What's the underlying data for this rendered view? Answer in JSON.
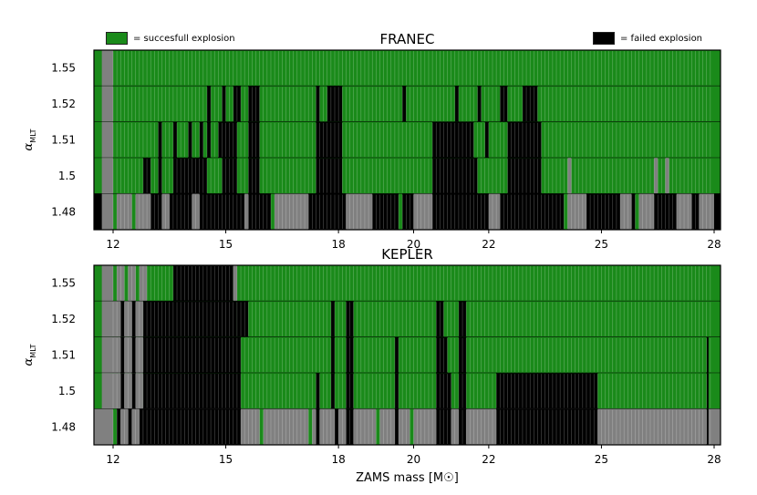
{
  "colors": {
    "success": "#1a8a1a",
    "failed": "#000000",
    "unexplored": "#808080",
    "gap": "#ffffff"
  },
  "legend": {
    "success_label": "= succesfull explosion",
    "failed_label": "= failed explosion"
  },
  "chart_data": [
    {
      "type": "heatmap",
      "title": "FRANEC",
      "xlabel": "",
      "ylabel": "α_MLT",
      "xlim": [
        11.7,
        28
      ],
      "x_ticks": [
        12,
        15,
        18,
        20,
        22,
        25,
        28
      ],
      "y_categories": [
        "1.55",
        "1.52",
        "1.51",
        "1.5",
        "1.48"
      ],
      "rows": [
        {
          "alpha": "1.55",
          "default": "S",
          "runs": [
            [
              11.7,
              12.0,
              "G"
            ]
          ]
        },
        {
          "alpha": "1.52",
          "default": "S",
          "runs": [
            [
              11.7,
              12.0,
              "G"
            ],
            [
              14.5,
              14.6,
              "F"
            ],
            [
              14.9,
              15.0,
              "F"
            ],
            [
              15.2,
              15.4,
              "F"
            ],
            [
              15.6,
              15.9,
              "F"
            ],
            [
              17.4,
              17.5,
              "F"
            ],
            [
              17.7,
              18.1,
              "F"
            ],
            [
              19.7,
              19.8,
              "F"
            ],
            [
              21.1,
              21.2,
              "F"
            ],
            [
              21.7,
              21.8,
              "F"
            ],
            [
              22.3,
              22.5,
              "F"
            ],
            [
              22.9,
              23.3,
              "F"
            ]
          ]
        },
        {
          "alpha": "1.51",
          "default": "S",
          "runs": [
            [
              11.7,
              12.0,
              "G"
            ],
            [
              13.2,
              13.3,
              "F"
            ],
            [
              13.6,
              13.7,
              "F"
            ],
            [
              14.0,
              14.1,
              "F"
            ],
            [
              14.3,
              14.4,
              "F"
            ],
            [
              14.5,
              14.6,
              "F"
            ],
            [
              14.8,
              15.3,
              "F"
            ],
            [
              15.6,
              15.9,
              "F"
            ],
            [
              17.4,
              18.1,
              "F"
            ],
            [
              20.5,
              21.6,
              "F"
            ],
            [
              21.9,
              22.0,
              "F"
            ],
            [
              22.5,
              23.4,
              "F"
            ]
          ]
        },
        {
          "alpha": "1.5",
          "default": "S",
          "runs": [
            [
              11.7,
              12.0,
              "G"
            ],
            [
              12.8,
              13.0,
              "F"
            ],
            [
              13.2,
              13.3,
              "F"
            ],
            [
              13.6,
              14.5,
              "F"
            ],
            [
              14.3,
              14.5,
              "F"
            ],
            [
              14.9,
              15.3,
              "F"
            ],
            [
              15.6,
              15.9,
              "F"
            ],
            [
              17.4,
              18.1,
              "F"
            ],
            [
              20.5,
              21.7,
              "F"
            ],
            [
              22.5,
              23.4,
              "F"
            ],
            [
              24.1,
              24.2,
              "G"
            ],
            [
              26.4,
              26.5,
              "G"
            ],
            [
              26.7,
              26.8,
              "G"
            ]
          ]
        },
        {
          "alpha": "1.48",
          "default": "F",
          "runs": [
            [
              11.7,
              12.0,
              "G"
            ],
            [
              12.0,
              12.1,
              "S"
            ],
            [
              12.1,
              12.5,
              "G"
            ],
            [
              12.5,
              12.6,
              "S"
            ],
            [
              12.6,
              13.0,
              "G"
            ],
            [
              13.3,
              13.5,
              "G"
            ],
            [
              14.1,
              14.3,
              "G"
            ],
            [
              15.5,
              15.6,
              "G"
            ],
            [
              16.2,
              16.3,
              "S"
            ],
            [
              16.3,
              17.2,
              "G"
            ],
            [
              18.2,
              18.9,
              "G"
            ],
            [
              19.6,
              19.7,
              "S"
            ],
            [
              20.0,
              20.5,
              "G"
            ],
            [
              22.0,
              22.3,
              "G"
            ],
            [
              24.0,
              24.1,
              "S"
            ],
            [
              24.1,
              24.6,
              "G"
            ],
            [
              25.5,
              25.8,
              "G"
            ],
            [
              25.9,
              26.0,
              "S"
            ],
            [
              26.0,
              26.4,
              "G"
            ],
            [
              27.0,
              27.4,
              "G"
            ],
            [
              27.6,
              28.0,
              "G"
            ]
          ]
        }
      ]
    },
    {
      "type": "heatmap",
      "title": "KEPLER",
      "xlabel": "ZAMS mass [M☉]",
      "ylabel": "α_MLT",
      "xlim": [
        11.7,
        28
      ],
      "x_ticks": [
        12,
        15,
        18,
        20,
        22,
        25,
        28
      ],
      "y_categories": [
        "1.55",
        "1.52",
        "1.51",
        "1.5",
        "1.48"
      ],
      "rows": [
        {
          "alpha": "1.55",
          "default": "S",
          "runs": [
            [
              11.7,
              12.0,
              "G"
            ],
            [
              12.1,
              12.3,
              "G"
            ],
            [
              12.4,
              12.6,
              "G"
            ],
            [
              12.7,
              12.9,
              "G"
            ],
            [
              13.6,
              15.2,
              "F"
            ],
            [
              15.2,
              15.3,
              "G"
            ]
          ]
        },
        {
          "alpha": "1.52",
          "default": "S",
          "runs": [
            [
              11.7,
              12.8,
              "G"
            ],
            [
              12.2,
              12.3,
              "F"
            ],
            [
              12.5,
              12.6,
              "F"
            ],
            [
              12.8,
              15.3,
              "F"
            ],
            [
              15.3,
              15.6,
              "F"
            ],
            [
              17.8,
              17.9,
              "F"
            ],
            [
              18.2,
              18.4,
              "F"
            ],
            [
              20.6,
              20.8,
              "F"
            ],
            [
              21.2,
              21.4,
              "F"
            ]
          ]
        },
        {
          "alpha": "1.51",
          "default": "S",
          "runs": [
            [
              11.7,
              12.8,
              "G"
            ],
            [
              12.2,
              12.3,
              "F"
            ],
            [
              12.5,
              12.6,
              "F"
            ],
            [
              12.8,
              15.4,
              "F"
            ],
            [
              17.8,
              17.9,
              "F"
            ],
            [
              18.2,
              18.4,
              "F"
            ],
            [
              19.5,
              19.6,
              "F"
            ],
            [
              20.6,
              20.9,
              "F"
            ],
            [
              21.2,
              21.4,
              "F"
            ],
            [
              27.8,
              27.85,
              "F"
            ]
          ]
        },
        {
          "alpha": "1.5",
          "default": "S",
          "runs": [
            [
              11.7,
              12.8,
              "G"
            ],
            [
              12.2,
              12.3,
              "F"
            ],
            [
              12.5,
              12.6,
              "F"
            ],
            [
              12.8,
              15.4,
              "F"
            ],
            [
              17.4,
              17.5,
              "F"
            ],
            [
              17.8,
              17.9,
              "F"
            ],
            [
              18.2,
              18.4,
              "F"
            ],
            [
              19.5,
              19.6,
              "F"
            ],
            [
              20.6,
              21.0,
              "F"
            ],
            [
              21.2,
              21.4,
              "F"
            ],
            [
              22.2,
              24.9,
              "F"
            ],
            [
              27.8,
              27.85,
              "F"
            ]
          ]
        },
        {
          "alpha": "1.48",
          "default": "G",
          "runs": [
            [
              12.0,
              12.1,
              "S"
            ],
            [
              12.1,
              12.2,
              "F"
            ],
            [
              12.4,
              12.5,
              "F"
            ],
            [
              12.7,
              12.8,
              "F"
            ],
            [
              12.8,
              15.4,
              "F"
            ],
            [
              15.9,
              16.0,
              "S"
            ],
            [
              17.2,
              17.3,
              "S"
            ],
            [
              17.4,
              17.5,
              "F"
            ],
            [
              17.9,
              18.0,
              "F"
            ],
            [
              18.2,
              18.4,
              "F"
            ],
            [
              19.0,
              19.1,
              "S"
            ],
            [
              19.5,
              19.6,
              "F"
            ],
            [
              19.9,
              20.0,
              "S"
            ],
            [
              20.6,
              21.0,
              "F"
            ],
            [
              21.2,
              21.4,
              "F"
            ],
            [
              22.2,
              24.9,
              "F"
            ],
            [
              27.8,
              27.85,
              "F"
            ]
          ]
        }
      ]
    }
  ]
}
